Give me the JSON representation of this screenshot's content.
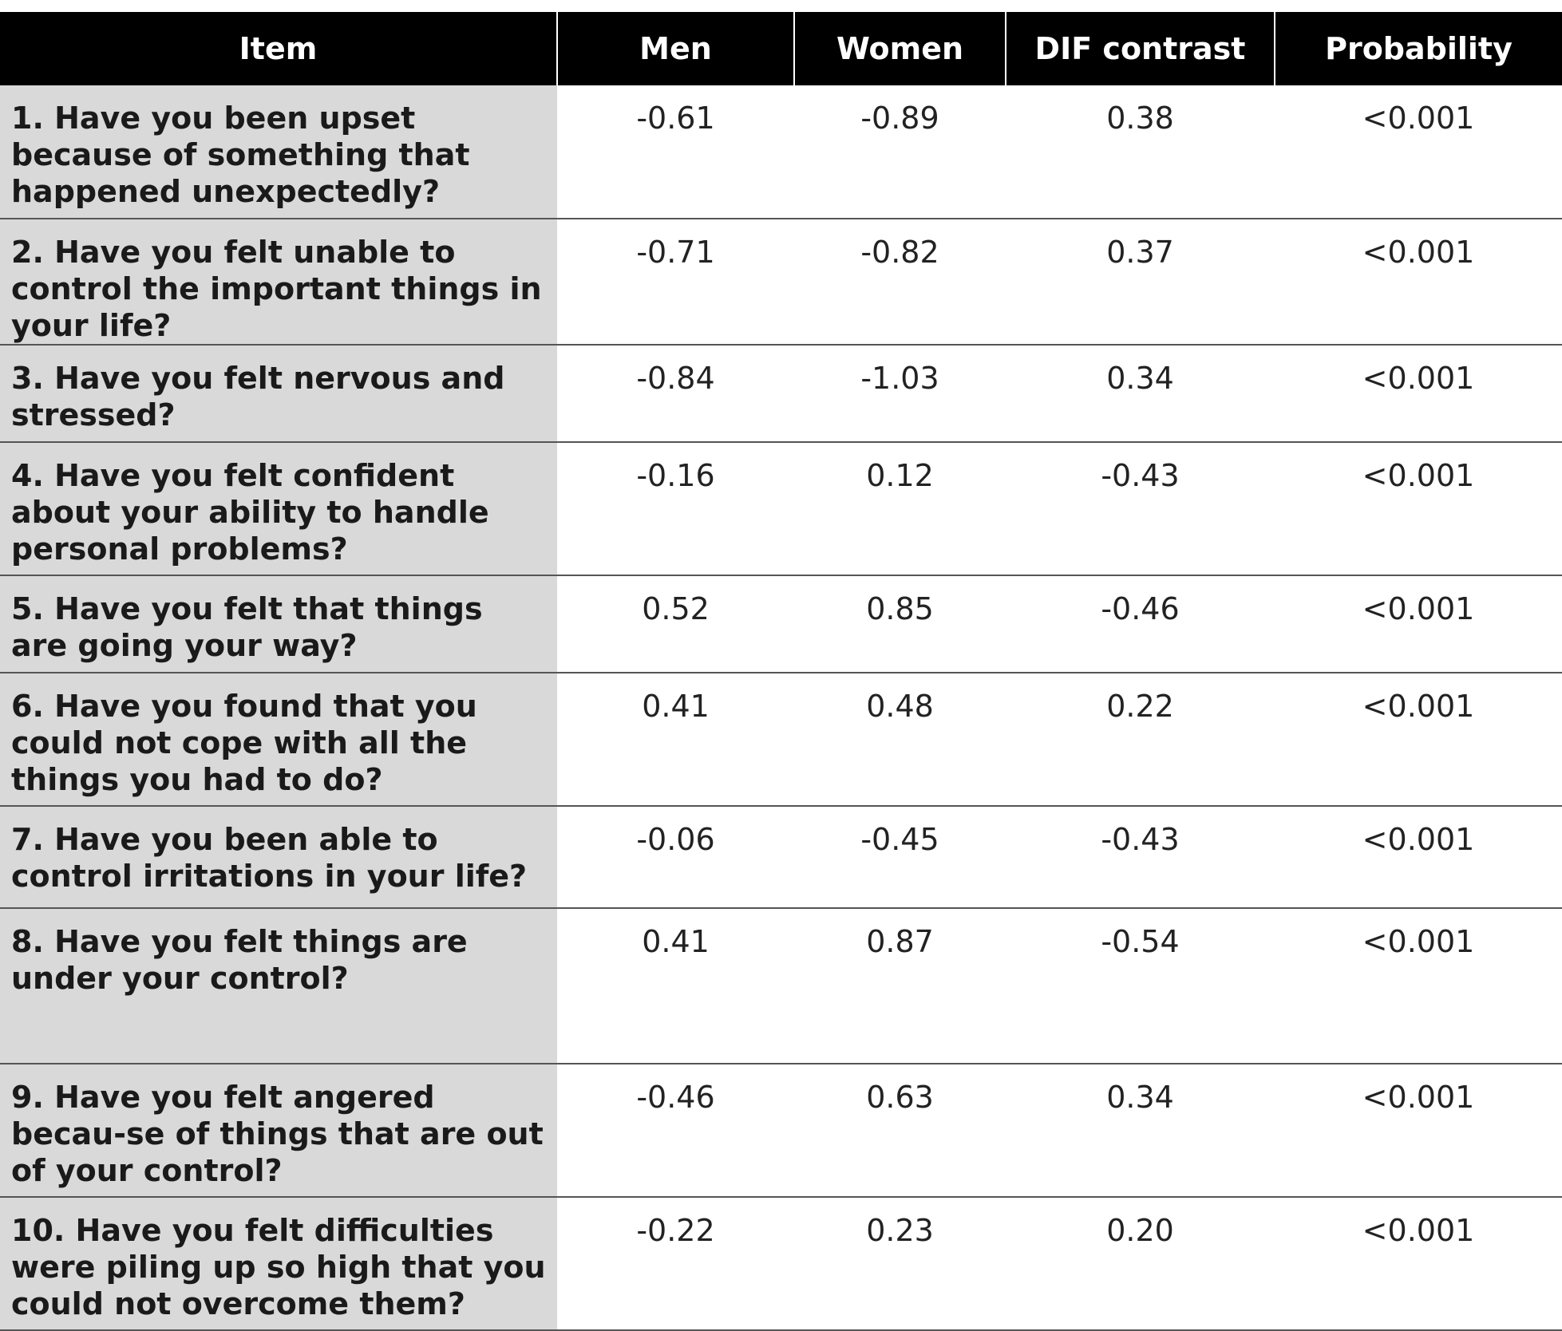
{
  "table": {
    "headers": {
      "item": "Item",
      "men": "Men",
      "women": "Women",
      "dif": "DIF contrast",
      "prob": "Probability"
    },
    "rows": [
      {
        "item": "1. Have you been upset because of something that happened unexpectedly?",
        "men": "-0.61",
        "women": "-0.89",
        "dif": "0.38",
        "prob": "<0.001"
      },
      {
        "item": "2. Have you felt unable to control the important things in your life?",
        "men": "-0.71",
        "women": "-0.82",
        "dif": "0.37",
        "prob": "<0.001"
      },
      {
        "item": "3. Have you felt nervous and stressed?",
        "men": "-0.84",
        "women": "-1.03",
        "dif": "0.34",
        "prob": "<0.001"
      },
      {
        "item": "4. Have you felt confident about your ability to handle personal problems?",
        "men": "-0.16",
        "women": "0.12",
        "dif": "-0.43",
        "prob": "<0.001"
      },
      {
        "item": "5. Have you felt that things are going your way?",
        "men": "0.52",
        "women": "0.85",
        "dif": "-0.46",
        "prob": "<0.001"
      },
      {
        "item": "6. Have you found that you could not cope with all the things you had to do?",
        "men": "0.41",
        "women": "0.48",
        "dif": "0.22",
        "prob": "<0.001"
      },
      {
        "item": "7. Have you been able to control irritations in your life?",
        "men": "-0.06",
        "women": "-0.45",
        "dif": "-0.43",
        "prob": "<0.001"
      },
      {
        "item": "8. Have you felt things are under your control?",
        "men": "0.41",
        "women": "0.87",
        "dif": "-0.54",
        "prob": "<0.001"
      },
      {
        "item": "9. Have you felt angered becau-se of things that are out of your control?",
        "men": "-0.46",
        "women": "0.63",
        "dif": "0.34",
        "prob": "<0.001"
      },
      {
        "item": "10. Have you felt difficulties were piling up so high that you could not overcome them?",
        "men": "-0.22",
        "women": "0.23",
        "dif": "0.20",
        "prob": "<0.001"
      }
    ]
  }
}
